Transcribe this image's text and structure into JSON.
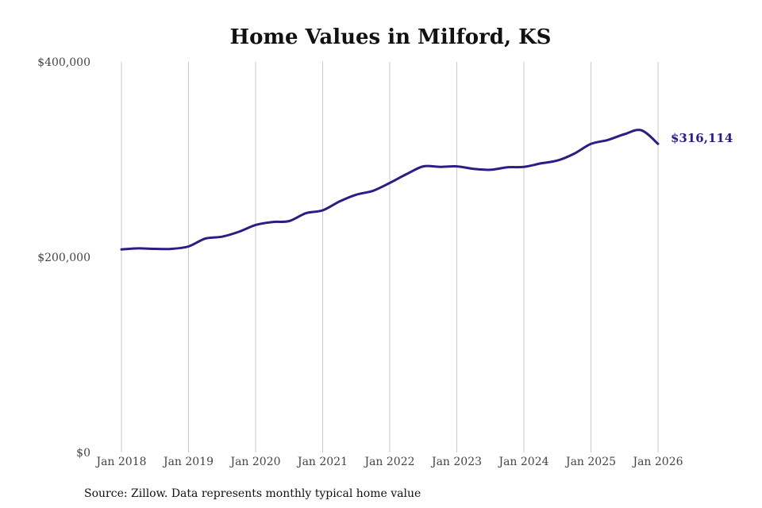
{
  "chart_data": {
    "type": "line",
    "title": "Home Values in Milford, KS",
    "xlabel": "",
    "ylabel": "",
    "ylim": [
      0,
      400000
    ],
    "y_ticks": [
      "$0",
      "$200,000",
      "$400,000"
    ],
    "y_tick_values": [
      0,
      200000,
      400000
    ],
    "x_ticks": [
      "Jan 2018",
      "Jan 2019",
      "Jan 2020",
      "Jan 2021",
      "Jan 2022",
      "Jan 2023",
      "Jan 2024",
      "Jan 2025",
      "Jan 2026"
    ],
    "x_tick_values": [
      2018,
      2019,
      2020,
      2021,
      2022,
      2023,
      2024,
      2025,
      2026
    ],
    "xlim": [
      2018,
      2026
    ],
    "grid": "vertical",
    "line_color": "#2a1d84",
    "end_label": "$316,114",
    "source": "Source: Zillow. Data represents monthly typical home value",
    "series": [
      {
        "x": [
          2018.0,
          2018.25,
          2018.5,
          2018.75,
          2019.0,
          2019.25,
          2019.5,
          2019.75,
          2020.0,
          2020.25,
          2020.5,
          2020.75,
          2021.0,
          2021.25,
          2021.5,
          2021.75,
          2022.0,
          2022.25,
          2022.5,
          2022.75,
          2023.0,
          2023.25,
          2023.5,
          2023.75,
          2024.0,
          2024.25,
          2024.5,
          2024.75,
          2025.0,
          2025.25,
          2025.5,
          2025.75,
          2026.0
        ],
        "values": [
          208000,
          209000,
          208500,
          208500,
          211000,
          219000,
          221000,
          226000,
          233000,
          236000,
          237000,
          245000,
          248000,
          257000,
          264000,
          268000,
          276000,
          285000,
          293000,
          292500,
          293000,
          290500,
          289500,
          292000,
          292500,
          296000,
          299000,
          306000,
          316000,
          320000,
          326000,
          330000,
          316114
        ]
      }
    ]
  }
}
